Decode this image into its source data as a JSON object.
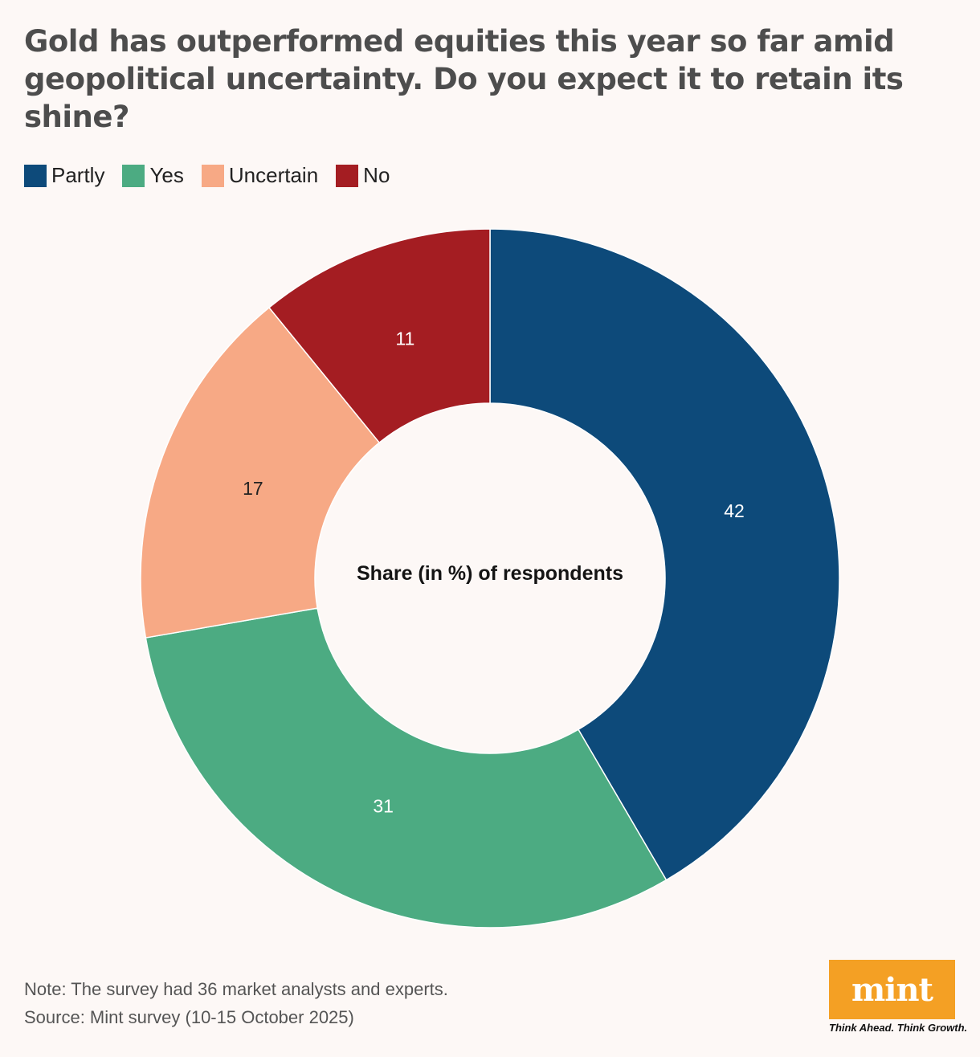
{
  "title": "Gold has outperformed equities this year so far amid geopolitical uncertainty. Do you expect it to retain its shine?",
  "chart_data": {
    "type": "pie",
    "title": "Gold has outperformed equities this year so far amid geopolitical uncertainty. Do you expect it to retain its shine?",
    "center_label": "Share (in %) of respondents",
    "categories": [
      "Partly",
      "Yes",
      "Uncertain",
      "No"
    ],
    "values": [
      42,
      31,
      17,
      11
    ],
    "colors": [
      "#0d4a7a",
      "#4cab82",
      "#f7a985",
      "#a41d22"
    ],
    "legend_position": "top-left",
    "donut": true
  },
  "footer": {
    "note": "Note: The survey had 36 market analysts and experts.",
    "source": "Source: Mint survey (10-15 October 2025)"
  },
  "brand": {
    "logo": "mint",
    "tagline": "Think Ahead. Think Growth."
  }
}
